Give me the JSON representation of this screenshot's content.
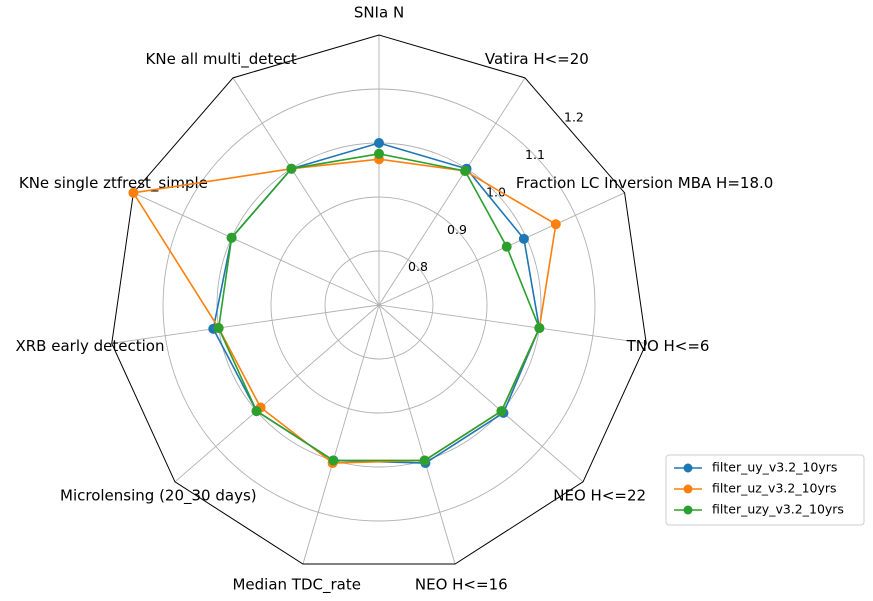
{
  "chart_data": {
    "type": "radar",
    "axes": [
      "SNIa N",
      "Vatira H<=20",
      "Fraction LC Inversion MBA H=18.0",
      "TNO H<=6",
      "NEO H<=22",
      "NEO H<=16",
      "Median TDC_rate",
      "Microlensing (20_30 days)",
      "XRB early detection",
      "KNe single ztfrest_simple",
      "KNe all multi_detect"
    ],
    "radial_ticks": [
      0.8,
      0.9,
      1.0,
      1.1,
      1.2
    ],
    "radial_tick_labels": [
      "0.8",
      "0.9",
      "1.0",
      "1.1",
      "1.2"
    ],
    "rlim": [
      0.7,
      1.2
    ],
    "grid": true,
    "legend_position": "lower-right",
    "series": [
      {
        "name": "filter_uy_v3.2_10yrs",
        "color": "#1f77b4",
        "values": [
          1.0,
          1.0,
          0.995,
          1.0,
          1.005,
          1.005,
          1.0,
          1.0,
          1.01,
          1.0,
          1.0
        ]
      },
      {
        "name": "filter_uz_v3.2_10yrs",
        "color": "#ff7f0e",
        "values": [
          0.97,
          0.995,
          1.06,
          1.0,
          1.0,
          1.0,
          1.005,
          0.99,
          1.0,
          1.2,
          1.0
        ]
      },
      {
        "name": "filter_uzy_v3.2_10yrs",
        "color": "#2ca02c",
        "values": [
          0.98,
          0.995,
          0.96,
          1.0,
          1.0,
          1.0,
          1.0,
          1.0,
          1.0,
          1.0,
          1.0
        ]
      }
    ]
  }
}
